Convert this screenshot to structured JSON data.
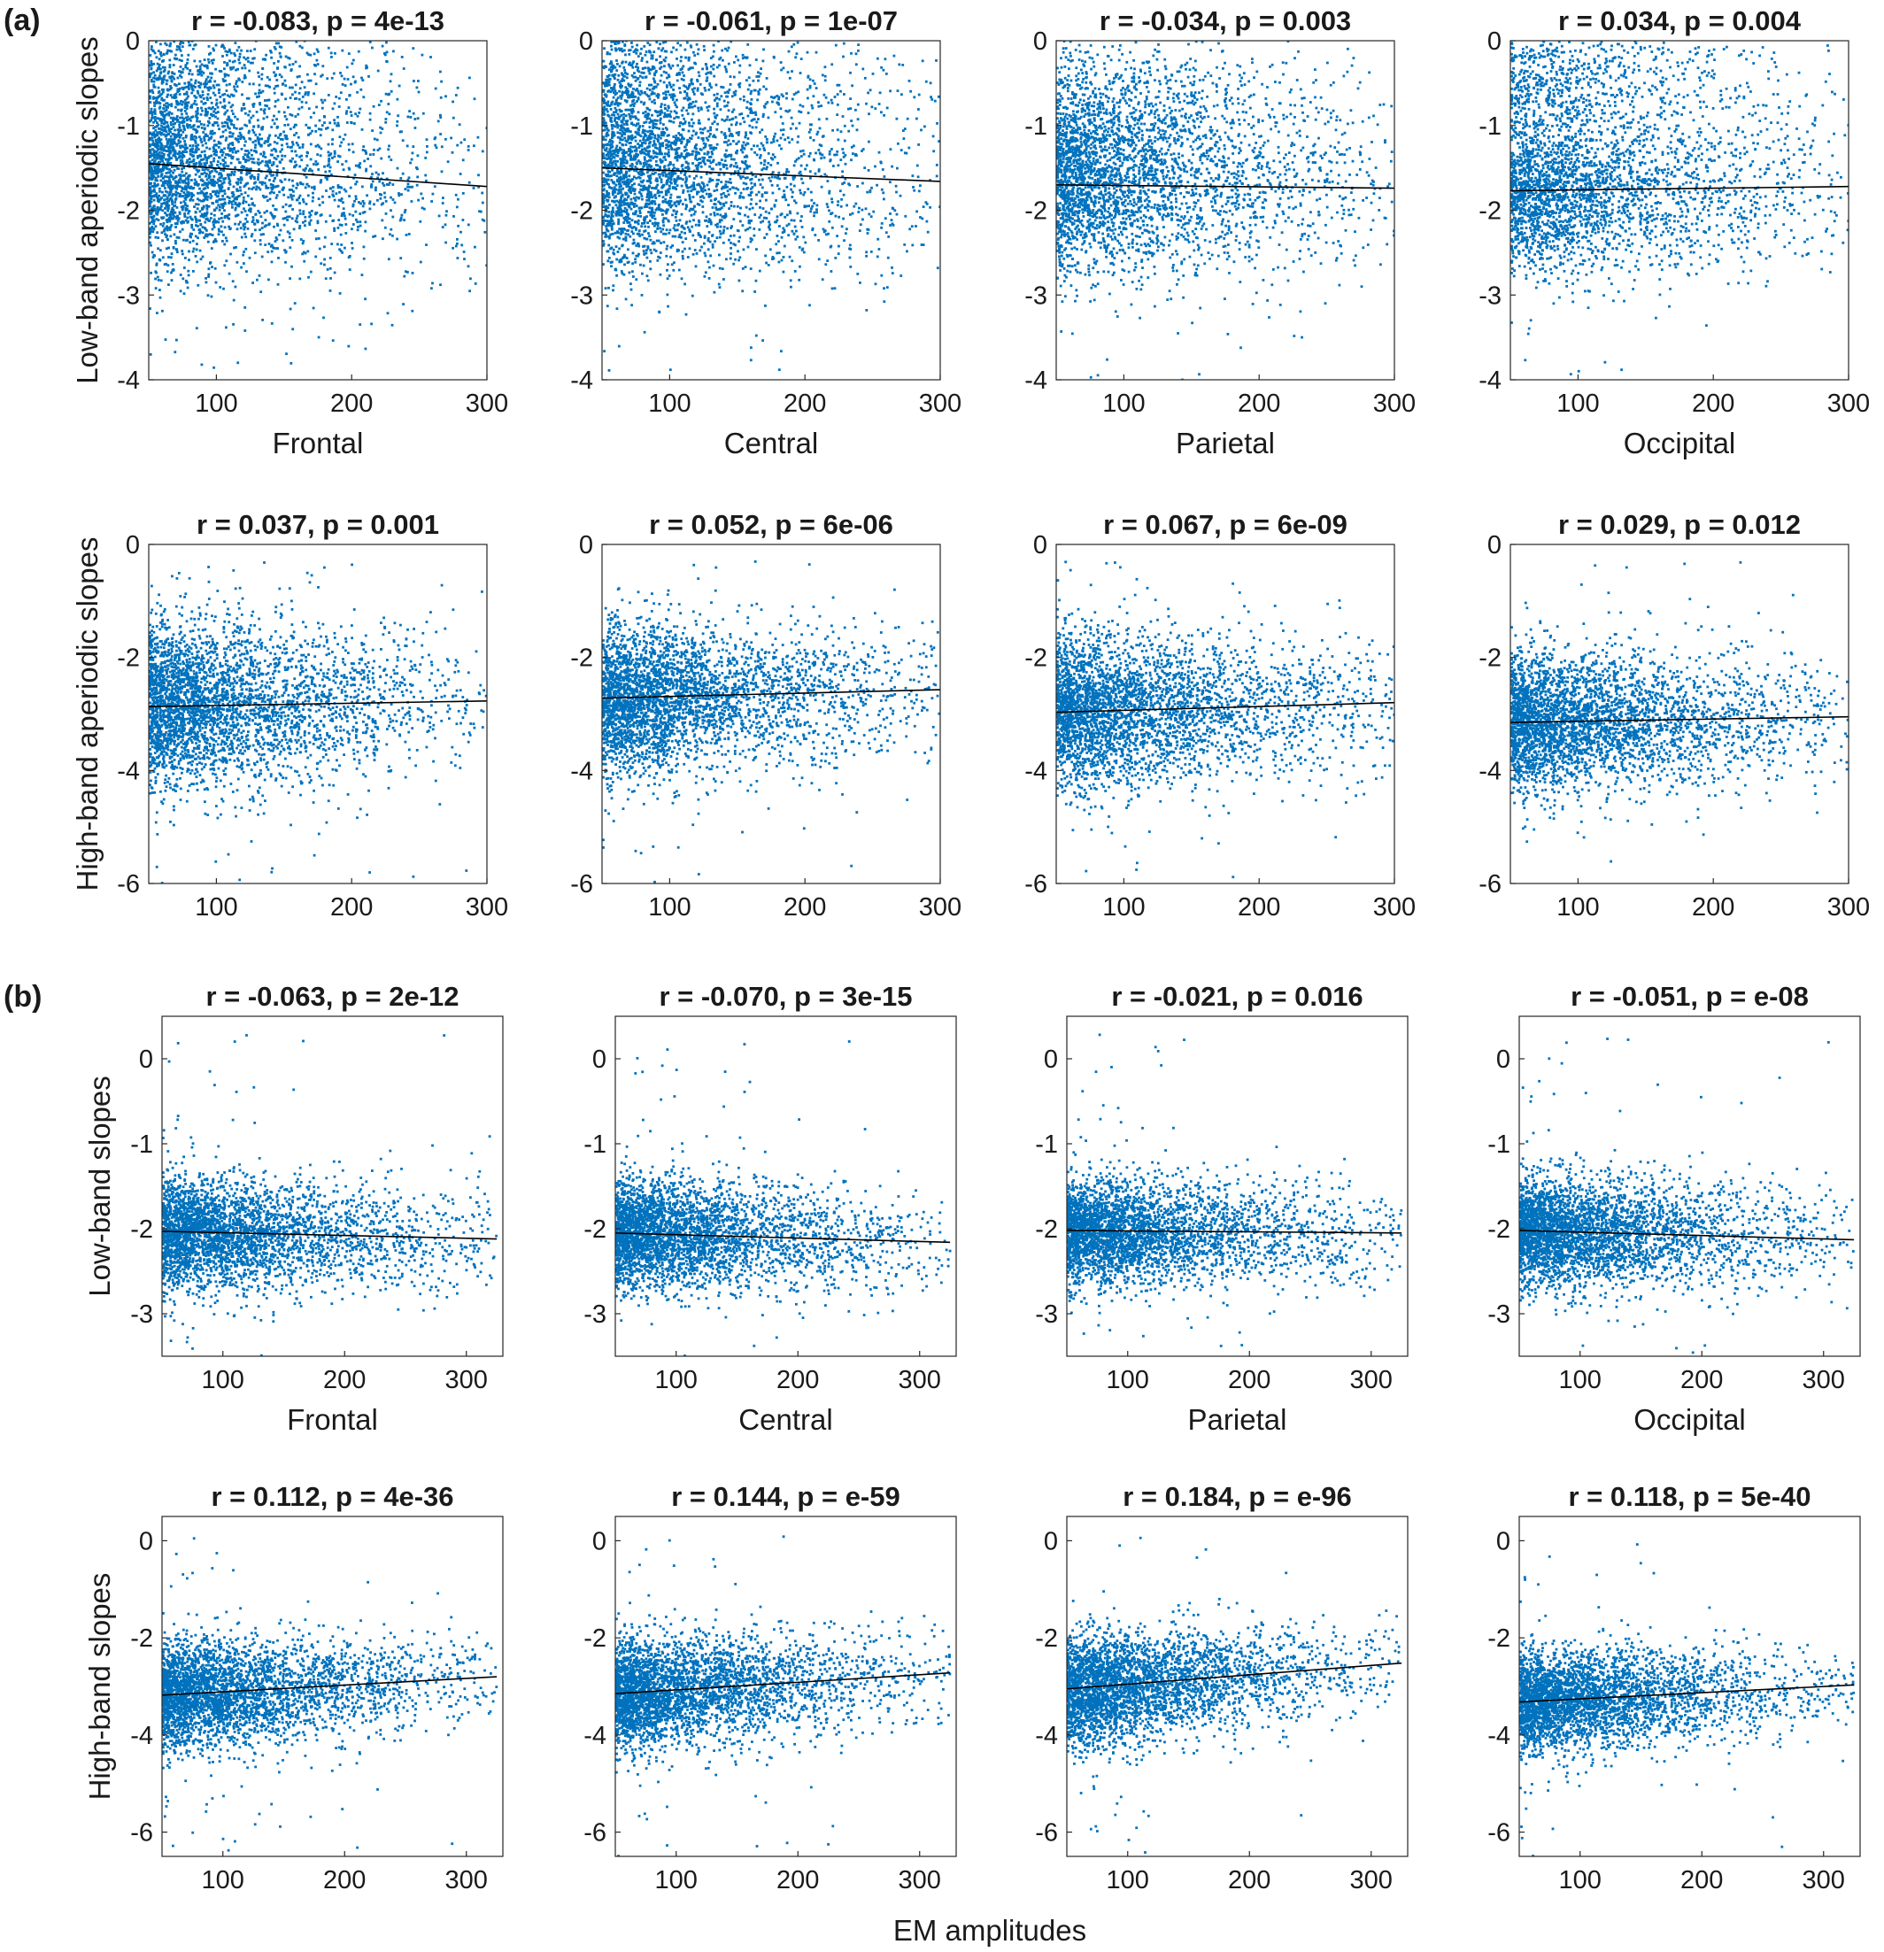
{
  "figure": {
    "panel_a_label": "(a)",
    "panel_b_label": "(b)",
    "bottom_xlabel": "EM amplitudes"
  },
  "colors": {
    "points": "#0072bd",
    "fit_line": "#000000",
    "axes": "#262626"
  },
  "chart_data": [
    {
      "type": "scatter",
      "panel": "(a)",
      "region": "Frontal",
      "title": "r = -0.083, p = 4e-13",
      "xlabel": "Frontal",
      "ylabel": "Low-band aperiodic slopes",
      "xlim": [
        50,
        300
      ],
      "ylim": [
        -4,
        0
      ],
      "xticks": [
        "100",
        "200",
        "300"
      ],
      "yticks": [
        "0",
        "-1",
        "-2",
        "-3",
        "-4"
      ],
      "fit": {
        "x": [
          50,
          300
        ],
        "y": [
          -1.45,
          -1.72
        ]
      },
      "distribution": {
        "center": -1.85,
        "spread": 0.55,
        "upper_cluster": -0.4,
        "x_decay": 80
      }
    },
    {
      "type": "scatter",
      "panel": "(a)",
      "region": "Central",
      "title": "r = -0.061, p = 1e-07",
      "xlabel": "Central",
      "ylabel": "",
      "xlim": [
        50,
        300
      ],
      "ylim": [
        -4,
        0
      ],
      "xticks": [
        "100",
        "200",
        "300"
      ],
      "yticks": [
        "0",
        "-1",
        "-2",
        "-3",
        "-4"
      ],
      "fit": {
        "x": [
          50,
          300
        ],
        "y": [
          -1.5,
          -1.66
        ]
      },
      "distribution": {
        "center": -1.85,
        "spread": 0.55,
        "upper_cluster": -0.5,
        "x_decay": 80
      }
    },
    {
      "type": "scatter",
      "panel": "(a)",
      "region": "Parietal",
      "title": "r = -0.034, p = 0.003",
      "xlabel": "Parietal",
      "ylabel": "",
      "xlim": [
        50,
        300
      ],
      "ylim": [
        -4,
        0
      ],
      "xticks": [
        "100",
        "200",
        "300"
      ],
      "yticks": [
        "0",
        "-1",
        "-2",
        "-3",
        "-4"
      ],
      "fit": {
        "x": [
          50,
          300
        ],
        "y": [
          -1.7,
          -1.74
        ]
      },
      "distribution": {
        "center": -1.9,
        "spread": 0.5,
        "upper_cluster": -0.8,
        "x_decay": 80
      }
    },
    {
      "type": "scatter",
      "panel": "(a)",
      "region": "Occipital",
      "title": "r = 0.034, p = 0.004",
      "xlabel": "Occipital",
      "ylabel": "",
      "xlim": [
        50,
        300
      ],
      "ylim": [
        -4,
        0
      ],
      "xticks": [
        "100",
        "200",
        "300"
      ],
      "yticks": [
        "0",
        "-1",
        "-2",
        "-3",
        "-4"
      ],
      "fit": {
        "x": [
          50,
          300
        ],
        "y": [
          -1.77,
          -1.72
        ]
      },
      "distribution": {
        "center": -1.9,
        "spread": 0.45,
        "upper_cluster": -0.5,
        "x_decay": 80
      }
    },
    {
      "type": "scatter",
      "panel": "(a)",
      "region": "Frontal",
      "title": "r = 0.037, p = 0.001",
      "xlabel": "",
      "ylabel": "High-band aperiodic slopes",
      "xlim": [
        50,
        300
      ],
      "ylim": [
        -6,
        0
      ],
      "xticks": [
        "100",
        "200",
        "300"
      ],
      "yticks": [
        "0",
        "-2",
        "-4",
        "-6"
      ],
      "fit": {
        "x": [
          50,
          300
        ],
        "y": [
          -2.87,
          -2.77
        ]
      },
      "distribution": {
        "center": -2.85,
        "spread": 0.7,
        "upper_cluster": null,
        "x_decay": 80
      }
    },
    {
      "type": "scatter",
      "panel": "(a)",
      "region": "Central",
      "title": "r = 0.052, p = 6e-06",
      "xlabel": "",
      "ylabel": "",
      "xlim": [
        50,
        300
      ],
      "ylim": [
        -6,
        0
      ],
      "xticks": [
        "100",
        "200",
        "300"
      ],
      "yticks": [
        "0",
        "-2",
        "-4",
        "-6"
      ],
      "fit": {
        "x": [
          50,
          300
        ],
        "y": [
          -2.72,
          -2.57
        ]
      },
      "distribution": {
        "center": -2.75,
        "spread": 0.65,
        "upper_cluster": null,
        "x_decay": 80
      }
    },
    {
      "type": "scatter",
      "panel": "(a)",
      "region": "Parietal",
      "title": "r = 0.067, p = 6e-09",
      "xlabel": "",
      "ylabel": "",
      "xlim": [
        50,
        300
      ],
      "ylim": [
        -6,
        0
      ],
      "xticks": [
        "100",
        "200",
        "300"
      ],
      "yticks": [
        "0",
        "-2",
        "-4",
        "-6"
      ],
      "fit": {
        "x": [
          50,
          300
        ],
        "y": [
          -2.97,
          -2.8
        ]
      },
      "distribution": {
        "center": -2.95,
        "spread": 0.65,
        "upper_cluster": null,
        "x_decay": 80
      }
    },
    {
      "type": "scatter",
      "panel": "(a)",
      "region": "Occipital",
      "title": "r = 0.029, p = 0.012",
      "xlabel": "",
      "ylabel": "",
      "xlim": [
        50,
        300
      ],
      "ylim": [
        -6,
        0
      ],
      "xticks": [
        "100",
        "200",
        "300"
      ],
      "yticks": [
        "0",
        "-2",
        "-4",
        "-6"
      ],
      "fit": {
        "x": [
          50,
          300
        ],
        "y": [
          -3.15,
          -3.05
        ]
      },
      "distribution": {
        "center": -3.15,
        "spread": 0.6,
        "upper_cluster": null,
        "x_decay": 80
      }
    },
    {
      "type": "scatter",
      "panel": "(b)",
      "region": "Frontal",
      "title": "r = -0.063, p = 2e-12",
      "xlabel": "Frontal",
      "ylabel": "Low-band slopes",
      "xlim": [
        50,
        330
      ],
      "ylim": [
        -3.5,
        0.5
      ],
      "xticks": [
        "100",
        "200",
        "300"
      ],
      "yticks": [
        "0",
        "-1",
        "-2",
        "-3"
      ],
      "fit": {
        "x": [
          50,
          325
        ],
        "y": [
          -2.03,
          -2.12
        ]
      },
      "distribution": {
        "center": -2.1,
        "spread": 0.32,
        "upper_cluster": null,
        "x_decay": 80
      }
    },
    {
      "type": "scatter",
      "panel": "(b)",
      "region": "Central",
      "title": "r = -0.070, p = 3e-15",
      "xlabel": "Central",
      "ylabel": "",
      "xlim": [
        50,
        330
      ],
      "ylim": [
        -3.5,
        0.5
      ],
      "xticks": [
        "100",
        "200",
        "300"
      ],
      "yticks": [
        "0",
        "-1",
        "-2",
        "-3"
      ],
      "fit": {
        "x": [
          50,
          325
        ],
        "y": [
          -2.05,
          -2.16
        ]
      },
      "distribution": {
        "center": -2.12,
        "spread": 0.32,
        "upper_cluster": null,
        "x_decay": 80
      }
    },
    {
      "type": "scatter",
      "panel": "(b)",
      "region": "Parietal",
      "title": "r = -0.021, p = 0.016",
      "xlabel": "Parietal",
      "ylabel": "",
      "xlim": [
        50,
        330
      ],
      "ylim": [
        -3.5,
        0.5
      ],
      "xticks": [
        "100",
        "200",
        "300"
      ],
      "yticks": [
        "0",
        "-1",
        "-2",
        "-3"
      ],
      "fit": {
        "x": [
          50,
          325
        ],
        "y": [
          -2.02,
          -2.05
        ]
      },
      "distribution": {
        "center": -2.08,
        "spread": 0.3,
        "upper_cluster": null,
        "x_decay": 80
      }
    },
    {
      "type": "scatter",
      "panel": "(b)",
      "region": "Occipital",
      "title": "r = -0.051, p = e-08",
      "xlabel": "Occipital",
      "ylabel": "",
      "xlim": [
        50,
        330
      ],
      "ylim": [
        -3.5,
        0.5
      ],
      "xticks": [
        "100",
        "200",
        "300"
      ],
      "yticks": [
        "0",
        "-1",
        "-2",
        "-3"
      ],
      "fit": {
        "x": [
          50,
          325
        ],
        "y": [
          -2.02,
          -2.13
        ]
      },
      "distribution": {
        "center": -2.1,
        "spread": 0.32,
        "upper_cluster": null,
        "x_decay": 80
      }
    },
    {
      "type": "scatter",
      "panel": "(b)",
      "region": "Frontal",
      "title": "r = 0.112, p = 4e-36",
      "xlabel": "",
      "ylabel": "High-band slopes",
      "xlim": [
        50,
        330
      ],
      "ylim": [
        -6.5,
        0.5
      ],
      "xticks": [
        "100",
        "200",
        "300"
      ],
      "yticks": [
        "0",
        "-2",
        "-4",
        "-6"
      ],
      "fit": {
        "x": [
          50,
          325
        ],
        "y": [
          -3.18,
          -2.8
        ]
      },
      "distribution": {
        "center": -3.1,
        "spread": 0.55,
        "upper_cluster": null,
        "x_decay": 80
      }
    },
    {
      "type": "scatter",
      "panel": "(b)",
      "region": "Central",
      "title": "r = 0.144, p = e-59",
      "xlabel": "",
      "ylabel": "",
      "xlim": [
        50,
        330
      ],
      "ylim": [
        -6.5,
        0.5
      ],
      "xticks": [
        "100",
        "200",
        "300"
      ],
      "yticks": [
        "0",
        "-2",
        "-4",
        "-6"
      ],
      "fit": {
        "x": [
          50,
          325
        ],
        "y": [
          -3.15,
          -2.72
        ]
      },
      "distribution": {
        "center": -3.05,
        "spread": 0.55,
        "upper_cluster": null,
        "x_decay": 80
      }
    },
    {
      "type": "scatter",
      "panel": "(b)",
      "region": "Parietal",
      "title": "r = 0.184, p = e-96",
      "xlabel": "",
      "ylabel": "",
      "xlim": [
        50,
        330
      ],
      "ylim": [
        -6.5,
        0.5
      ],
      "xticks": [
        "100",
        "200",
        "300"
      ],
      "yticks": [
        "0",
        "-2",
        "-4",
        "-6"
      ],
      "fit": {
        "x": [
          50,
          325
        ],
        "y": [
          -3.05,
          -2.52
        ]
      },
      "distribution": {
        "center": -3.0,
        "spread": 0.55,
        "upper_cluster": null,
        "x_decay": 80
      }
    },
    {
      "type": "scatter",
      "panel": "(b)",
      "region": "Occipital",
      "title": "r = 0.118, p = 5e-40",
      "xlabel": "",
      "ylabel": "",
      "xlim": [
        50,
        330
      ],
      "ylim": [
        -6.5,
        0.5
      ],
      "xticks": [
        "100",
        "200",
        "300"
      ],
      "yticks": [
        "0",
        "-2",
        "-4",
        "-6"
      ],
      "fit": {
        "x": [
          50,
          325
        ],
        "y": [
          -3.32,
          -2.97
        ]
      },
      "distribution": {
        "center": -3.25,
        "spread": 0.5,
        "upper_cluster": null,
        "x_decay": 80
      }
    }
  ]
}
